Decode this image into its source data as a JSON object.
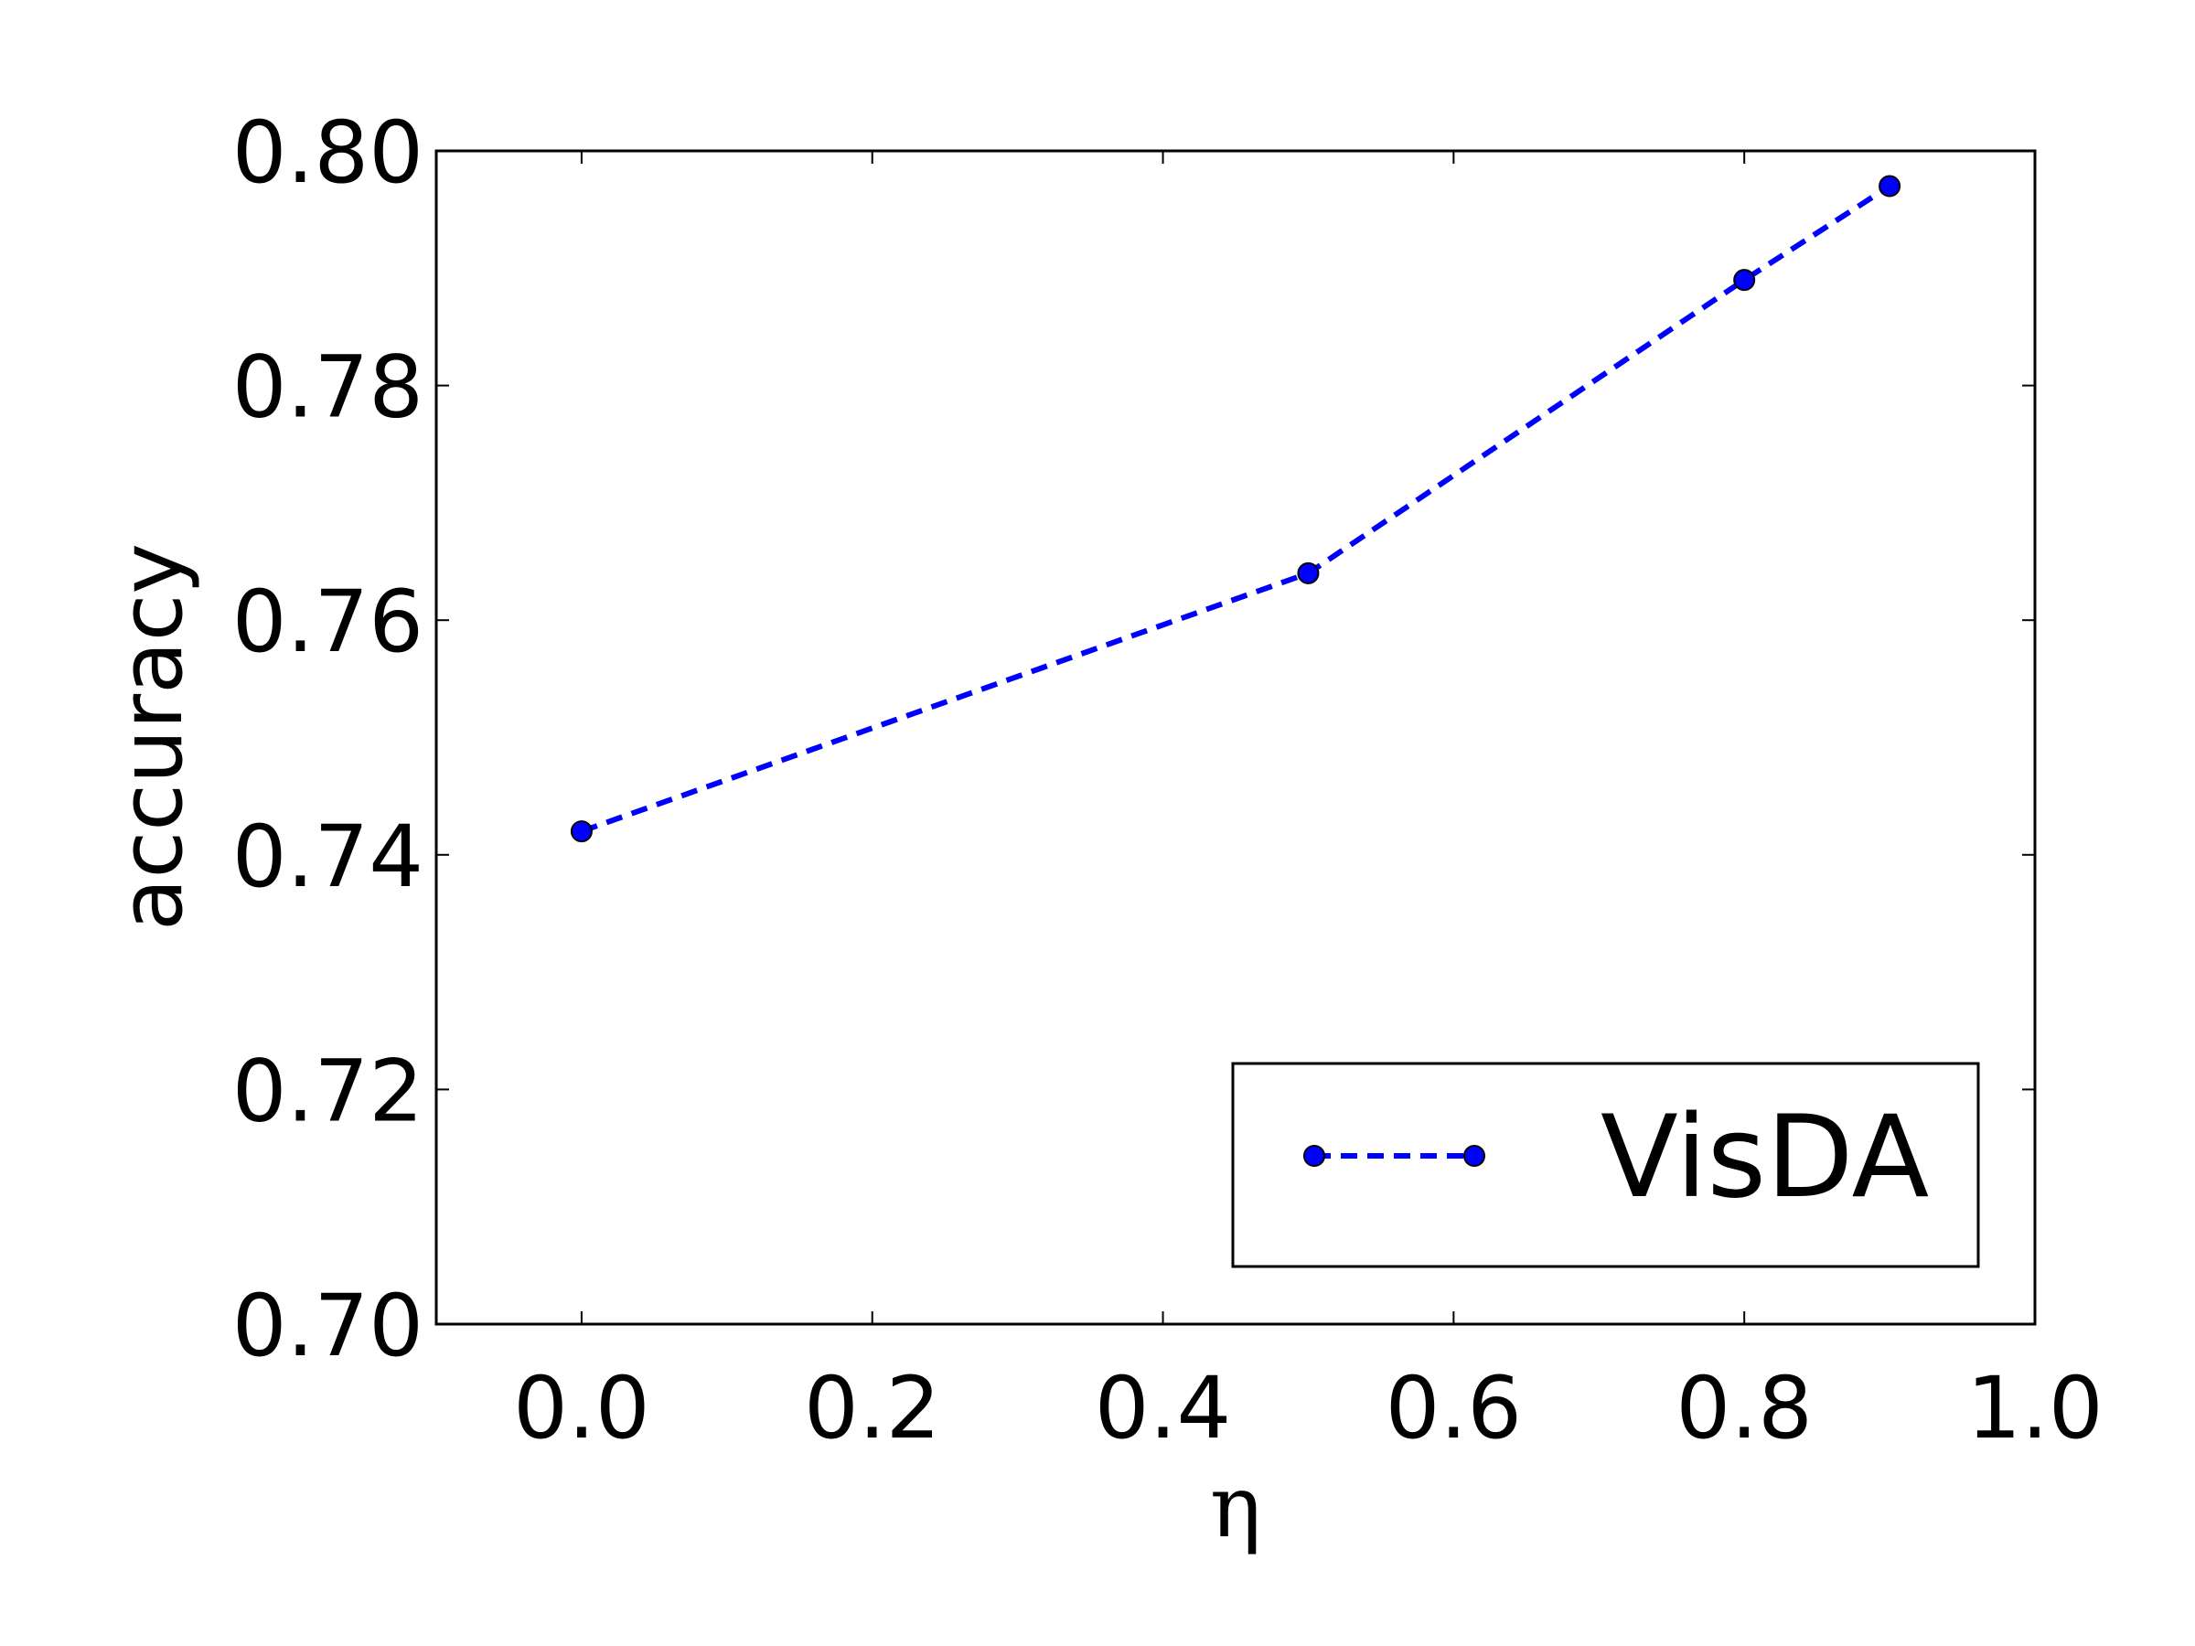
{
  "chart_data": {
    "type": "line",
    "xlabel": "η",
    "ylabel": "accuracy",
    "xlim": [
      -0.1,
      1.0
    ],
    "ylim": [
      0.7,
      0.8
    ],
    "x_ticks": [
      "0.0",
      "0.2",
      "0.4",
      "0.6",
      "0.8",
      "1.0"
    ],
    "y_ticks": [
      "0.70",
      "0.72",
      "0.74",
      "0.76",
      "0.78",
      "0.80"
    ],
    "x_tick_values": [
      0.0,
      0.2,
      0.4,
      0.6,
      0.8,
      1.0
    ],
    "y_tick_values": [
      0.7,
      0.72,
      0.74,
      0.76,
      0.78,
      0.8
    ],
    "series": [
      {
        "name": "VisDA",
        "x": [
          0.0,
          0.5,
          0.8,
          0.9
        ],
        "y": [
          0.742,
          0.764,
          0.789,
          0.797
        ],
        "color": "#0000ff",
        "line_style": "dashed",
        "marker": "circle"
      }
    ],
    "legend": {
      "position": "lower-right",
      "entries": [
        "VisDA"
      ]
    },
    "grid": false
  }
}
